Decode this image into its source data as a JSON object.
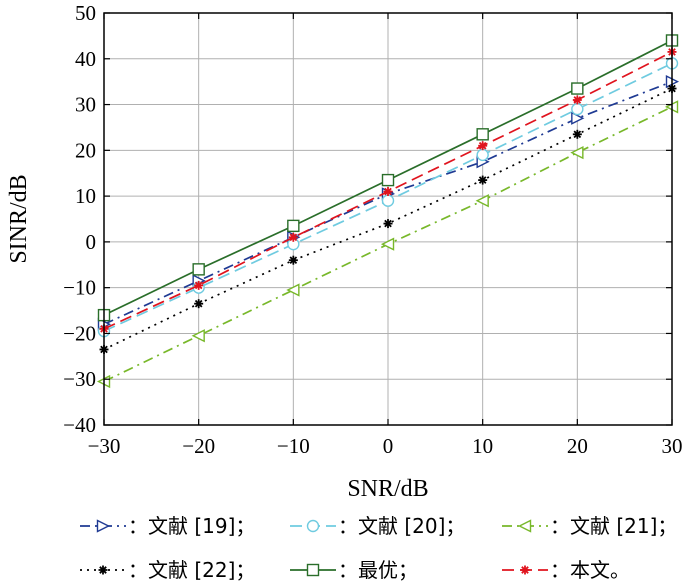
{
  "chart_data": {
    "type": "line",
    "title": "",
    "xlabel": "SNR/dB",
    "ylabel": "SINR/dB",
    "xlim": [
      -30,
      30
    ],
    "ylim": [
      -40,
      50
    ],
    "xticks": [
      -30,
      -20,
      -10,
      0,
      10,
      20,
      30
    ],
    "yticks": [
      -40,
      -30,
      -20,
      -10,
      0,
      10,
      20,
      30,
      40,
      50
    ],
    "x": [
      -30,
      -20,
      -10,
      0,
      10,
      20,
      30
    ],
    "grid": true,
    "legend_placement": "bottom",
    "series": [
      {
        "name": "：文献 [19]；",
        "values": [
          -18,
          -8.5,
          1,
          10.5,
          17.5,
          27,
          35
        ],
        "color": "#1f3a93",
        "dash": "10,5,2,5",
        "marker": "triangle-right"
      },
      {
        "name": "：文献 [20]；",
        "values": [
          -19.5,
          -10,
          -0.5,
          9,
          19,
          29,
          39
        ],
        "color": "#6fcbe0",
        "dash": "12,6",
        "marker": "circle"
      },
      {
        "name": "：文献 [21]；",
        "values": [
          -30.5,
          -20.5,
          -10.5,
          -0.5,
          9,
          19.5,
          29.5
        ],
        "color": "#78b82a",
        "dash": "10,5,2,5",
        "marker": "triangle-left"
      },
      {
        "name": "：文献 [22]；",
        "values": [
          -23.5,
          -13.5,
          -4,
          4,
          13.5,
          23.5,
          33.5
        ],
        "color": "#000000",
        "dash": "2,5",
        "marker": "star"
      },
      {
        "name": "：最优；",
        "values": [
          -16,
          -6,
          3.5,
          13.5,
          23.5,
          33.5,
          44
        ],
        "color": "#2a6e2a",
        "dash": "",
        "marker": "square"
      },
      {
        "name": "：本文。",
        "values": [
          -19,
          -9.5,
          1,
          11,
          21,
          31,
          41.5
        ],
        "color": "#e0141e",
        "dash": "12,6",
        "marker": "star"
      }
    ]
  }
}
